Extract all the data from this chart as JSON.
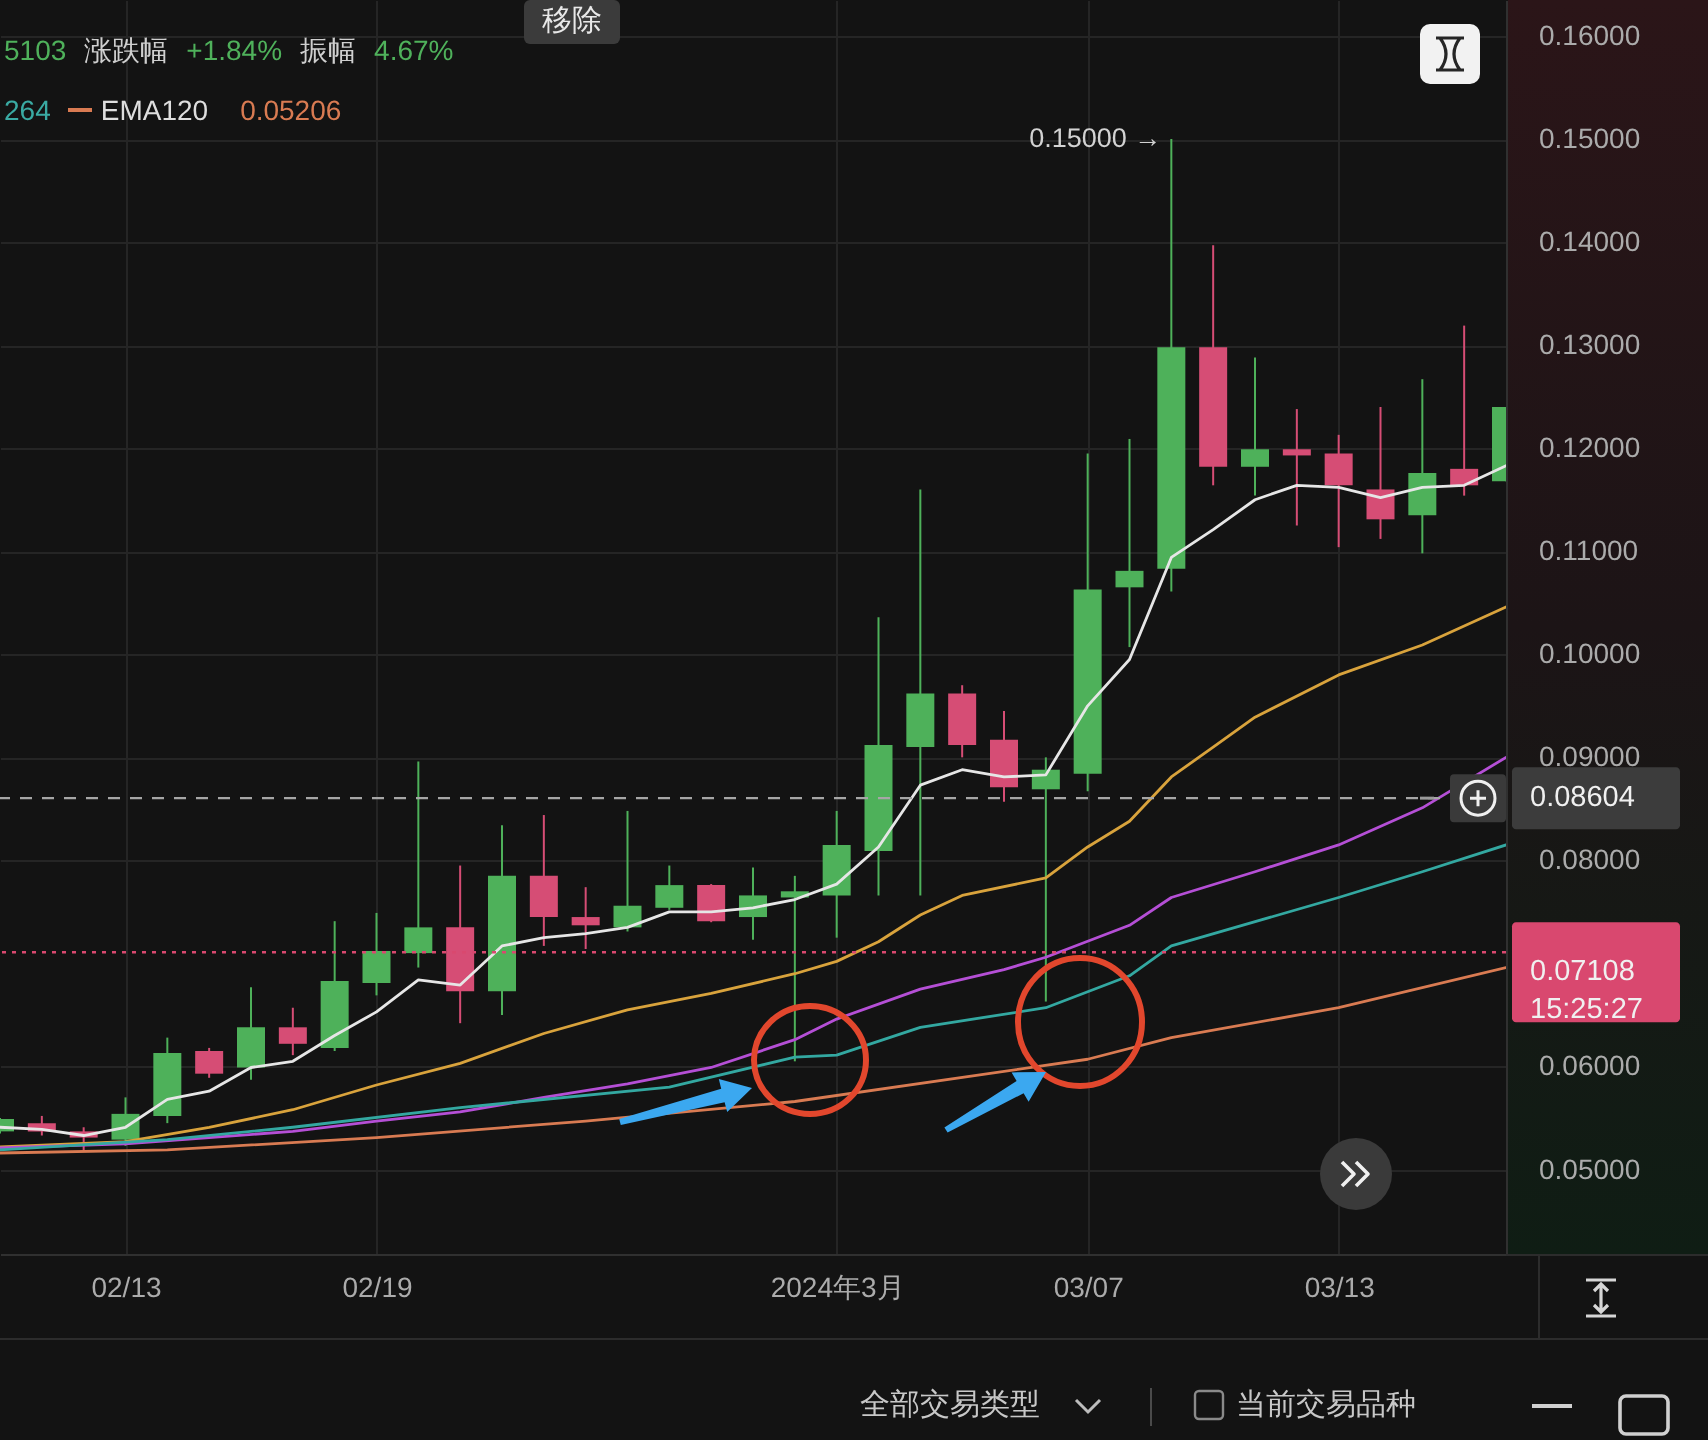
{
  "chart_data": {
    "type": "candlestick",
    "x": [
      "2024-02-10",
      "2024-02-11",
      "2024-02-12",
      "2024-02-13",
      "2024-02-14",
      "2024-02-15",
      "2024-02-16",
      "2024-02-17",
      "2024-02-18",
      "2024-02-19",
      "2024-02-20",
      "2024-02-21",
      "2024-02-22",
      "2024-02-23",
      "2024-02-24",
      "2024-02-25",
      "2024-02-26",
      "2024-02-27",
      "2024-02-28",
      "2024-02-29",
      "2024-03-01",
      "2024-03-02",
      "2024-03-03",
      "2024-03-04",
      "2024-03-05",
      "2024-03-06",
      "2024-03-07",
      "2024-03-08",
      "2024-03-09",
      "2024-03-10",
      "2024-03-11",
      "2024-03-12",
      "2024-03-13",
      "2024-03-14",
      "2024-03-15",
      "2024-03-16",
      "2024-03-17"
    ],
    "ohlc": [
      [
        0.0537,
        0.055,
        0.0535,
        0.0549
      ],
      [
        0.0545,
        0.0552,
        0.0533,
        0.0537
      ],
      [
        0.0537,
        0.0541,
        0.0518,
        0.0531
      ],
      [
        0.0529,
        0.057,
        0.0523,
        0.0554
      ],
      [
        0.0552,
        0.0628,
        0.0545,
        0.0613
      ],
      [
        0.0615,
        0.0618,
        0.0589,
        0.0593
      ],
      [
        0.0599,
        0.0677,
        0.0587,
        0.0638
      ],
      [
        0.0638,
        0.0657,
        0.0611,
        0.0622
      ],
      [
        0.0618,
        0.0741,
        0.0615,
        0.0683
      ],
      [
        0.0681,
        0.0749,
        0.0669,
        0.0712
      ],
      [
        0.071,
        0.0896,
        0.0696,
        0.0735
      ],
      [
        0.0735,
        0.0795,
        0.0642,
        0.0673
      ],
      [
        0.0673,
        0.0834,
        0.065,
        0.0785
      ],
      [
        0.0785,
        0.0844,
        0.0717,
        0.0745
      ],
      [
        0.0745,
        0.0774,
        0.0714,
        0.0737
      ],
      [
        0.0735,
        0.0848,
        0.0731,
        0.0756
      ],
      [
        0.0754,
        0.0795,
        0.0752,
        0.0776
      ],
      [
        0.0776,
        0.0777,
        0.074,
        0.0741
      ],
      [
        0.0745,
        0.0793,
        0.0723,
        0.0766
      ],
      [
        0.0764,
        0.0785,
        0.0605,
        0.077
      ],
      [
        0.0766,
        0.0848,
        0.0725,
        0.0815
      ],
      [
        0.0809,
        0.1036,
        0.0766,
        0.0912
      ],
      [
        0.091,
        0.116,
        0.0766,
        0.0962
      ],
      [
        0.0962,
        0.097,
        0.09,
        0.0912
      ],
      [
        0.0917,
        0.0945,
        0.0857,
        0.0871
      ],
      [
        0.0869,
        0.09,
        0.0663,
        0.0888
      ],
      [
        0.0884,
        0.1195,
        0.0867,
        0.1063
      ],
      [
        0.1065,
        0.1209,
        0.1007,
        0.1081
      ],
      [
        0.1083,
        0.15,
        0.1061,
        0.1298
      ],
      [
        0.1298,
        0.1397,
        0.1164,
        0.1182
      ],
      [
        0.1182,
        0.1288,
        0.1154,
        0.1199
      ],
      [
        0.1199,
        0.1238,
        0.1125,
        0.1193
      ],
      [
        0.1195,
        0.1213,
        0.1104,
        0.1164
      ],
      [
        0.116,
        0.124,
        0.1112,
        0.1131
      ],
      [
        0.1135,
        0.1267,
        0.1098,
        0.1176
      ],
      [
        0.118,
        0.1319,
        0.1154,
        0.1164
      ],
      [
        0.1168,
        0.124,
        0.1168,
        0.124
      ]
    ],
    "colors": [
      "#4eb15a",
      "#d64d75",
      "#d64d75",
      "#4eb15a",
      "#4eb15a",
      "#d64d75",
      "#4eb15a",
      "#d64d75",
      "#4eb15a",
      "#4eb15a",
      "#4eb15a",
      "#d64d75",
      "#4eb15a",
      "#d64d75",
      "#d64d75",
      "#4eb15a",
      "#4eb15a",
      "#d64d75",
      "#4eb15a",
      "#4eb15a",
      "#4eb15a",
      "#4eb15a",
      "#4eb15a",
      "#d64d75",
      "#d64d75",
      "#4eb15a",
      "#4eb15a",
      "#4eb15a",
      "#4eb15a",
      "#d64d75",
      "#4eb15a",
      "#d64d75",
      "#d64d75",
      "#d64d75",
      "#4eb15a",
      "#d64d75",
      "#4eb15a"
    ],
    "series": [
      {
        "type": "line",
        "color": "#e6e6e6",
        "x": [
          "2024-02-10",
          "2024-02-11",
          "2024-02-12",
          "2024-02-13",
          "2024-02-14",
          "2024-02-15",
          "2024-02-16",
          "2024-02-17",
          "2024-02-18",
          "2024-02-19",
          "2024-02-20",
          "2024-02-21",
          "2024-02-22",
          "2024-02-23",
          "2024-02-24",
          "2024-02-25",
          "2024-02-26",
          "2024-02-27",
          "2024-02-28",
          "2024-02-29",
          "2024-03-01",
          "2024-03-02",
          "2024-03-03",
          "2024-03-04",
          "2024-03-05",
          "2024-03-06",
          "2024-03-07",
          "2024-03-08",
          "2024-03-09",
          "2024-03-10",
          "2024-03-11",
          "2024-03-12",
          "2024-03-13",
          "2024-03-14",
          "2024-03-15",
          "2024-03-16",
          "2024-03-17"
        ],
        "values": [
          0.0541,
          0.0539,
          0.0533,
          0.0541,
          0.0568,
          0.0576,
          0.0599,
          0.0605,
          0.063,
          0.0653,
          0.0684,
          0.0679,
          0.0717,
          0.0725,
          0.0729,
          0.0735,
          0.075,
          0.075,
          0.0754,
          0.0762,
          0.0777,
          0.0813,
          0.0873,
          0.0888,
          0.0881,
          0.0883,
          0.095,
          0.0995,
          0.1094,
          0.1121,
          0.115,
          0.1164,
          0.1162,
          0.1152,
          0.1162,
          0.1164,
          0.1183
        ]
      },
      {
        "type": "line",
        "color": "#d9a33c",
        "x": [
          "2024-02-10",
          "2024-02-13",
          "2024-02-15",
          "2024-02-17",
          "2024-02-19",
          "2024-02-21",
          "2024-02-23",
          "2024-02-25",
          "2024-02-27",
          "2024-02-29",
          "2024-03-01",
          "2024-03-02",
          "2024-03-03",
          "2024-03-04",
          "2024-03-06",
          "2024-03-07",
          "2024-03-08",
          "2024-03-09",
          "2024-03-10",
          "2024-03-11",
          "2024-03-13",
          "2024-03-15",
          "2024-03-17"
        ],
        "values": [
          0.0522,
          0.0527,
          0.0541,
          0.0558,
          0.0582,
          0.0603,
          0.0632,
          0.0655,
          0.0671,
          0.069,
          0.0702,
          0.0721,
          0.0747,
          0.0766,
          0.0783,
          0.0813,
          0.0838,
          0.0881,
          0.091,
          0.0939,
          0.098,
          0.1009,
          0.1046
        ]
      },
      {
        "type": "line",
        "color": "#b54fd6",
        "x": [
          "2024-02-10",
          "2024-02-13",
          "2024-02-15",
          "2024-02-17",
          "2024-02-19",
          "2024-02-21",
          "2024-02-23",
          "2024-02-25",
          "2024-02-27",
          "2024-02-29",
          "2024-03-01",
          "2024-03-03",
          "2024-03-05",
          "2024-03-06",
          "2024-03-08",
          "2024-03-09",
          "2024-03-11",
          "2024-03-13",
          "2024-03-15",
          "2024-03-17"
        ],
        "values": [
          0.0521,
          0.0525,
          0.0531,
          0.0537,
          0.0547,
          0.0556,
          0.057,
          0.0583,
          0.0599,
          0.0626,
          0.0646,
          0.0675,
          0.0694,
          0.0706,
          0.0737,
          0.0764,
          0.0789,
          0.0815,
          0.0851,
          0.09
        ]
      },
      {
        "type": "line",
        "color": "#33a8a1",
        "x": [
          "2024-02-10",
          "2024-02-14",
          "2024-02-17",
          "2024-02-21",
          "2024-02-26",
          "2024-02-29",
          "2024-03-01",
          "2024-03-03",
          "2024-03-06",
          "2024-03-08",
          "2024-03-09",
          "2024-03-13",
          "2024-03-15",
          "2024-03-17"
        ],
        "values": [
          0.0519,
          0.0529,
          0.0541,
          0.056,
          0.058,
          0.0609,
          0.0611,
          0.0638,
          0.0657,
          0.0688,
          0.0717,
          0.0764,
          0.0789,
          0.0815
        ]
      },
      {
        "type": "line",
        "name": "EMA120",
        "color": "#d97b52",
        "x": [
          "2024-02-10",
          "2024-02-14",
          "2024-02-19",
          "2024-02-24",
          "2024-02-29",
          "2024-03-07",
          "2024-03-09",
          "2024-03-13",
          "2024-03-17"
        ],
        "values": [
          0.0516,
          0.0519,
          0.0531,
          0.0547,
          0.0566,
          0.0607,
          0.0628,
          0.0657,
          0.0696
        ]
      }
    ],
    "xlim": [
      "2024-02-10",
      "2024-03-17"
    ],
    "xticks": [
      {
        "value": "2024-02-13",
        "label": "02/13"
      },
      {
        "value": "2024-02-19",
        "label": "02/19"
      },
      {
        "value": "2024-03-01",
        "label": "2024年3月"
      },
      {
        "value": "2024-03-07",
        "label": "03/07"
      },
      {
        "value": "2024-03-13",
        "label": "03/13"
      }
    ],
    "ylim": [
      0.0418,
      0.1635
    ],
    "yticks": [
      {
        "value": 0.05,
        "label": "0.05000"
      },
      {
        "value": 0.06,
        "label": "0.06000"
      },
      {
        "value": 0.08,
        "label": "0.08000"
      },
      {
        "value": 0.09,
        "label": "0.09000"
      },
      {
        "value": 0.1,
        "label": "0.10000"
      },
      {
        "value": 0.11,
        "label": "0.11000"
      },
      {
        "value": 0.12,
        "label": "0.12000"
      },
      {
        "value": 0.13,
        "label": "0.13000"
      },
      {
        "value": 0.14,
        "label": "0.14000"
      },
      {
        "value": 0.15,
        "label": "0.15000"
      },
      {
        "value": 0.16,
        "label": "0.16000"
      }
    ],
    "grid": true,
    "legend": "top left",
    "ref_lines": [
      {
        "axis": "y",
        "value": 0.08604,
        "label": "0.08604",
        "color": "#a6a6a6",
        "line_style": "dashed"
      },
      {
        "axis": "y",
        "value": 0.07108,
        "label": "0.07108\n15:25:27",
        "color": "#d9486f",
        "line_style": "dotted"
      }
    ],
    "annotations": [
      "5103",
      "涨跌幅",
      "+1.84%",
      "振幅",
      "4.67%",
      "264",
      "0.05206",
      "移除",
      "全部交易类型",
      "当前交易品种",
      {
        "text": "0.15000 →",
        "x": "2024-03-09",
        "y": 0.15
      }
    ]
  }
}
